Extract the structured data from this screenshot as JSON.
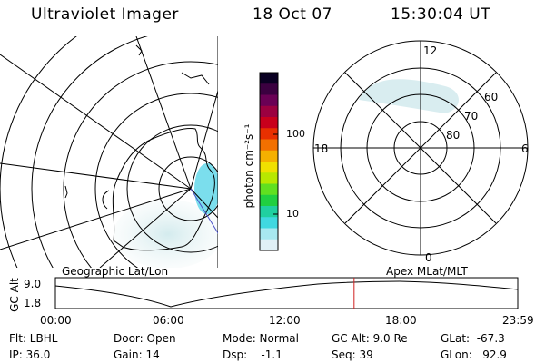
{
  "header": {
    "title": "Ultraviolet Imager",
    "date": "18 Oct 07",
    "time": "15:30:04 UT"
  },
  "colorbar": {
    "unit_label": "photon cm⁻²s⁻¹",
    "ticks": [
      "100",
      "10"
    ],
    "colors": [
      "#0a0022",
      "#3b0040",
      "#6a0055",
      "#9b0040",
      "#c8001c",
      "#e83000",
      "#f27000",
      "#f5b000",
      "#f0e000",
      "#b8e800",
      "#60e020",
      "#20d040",
      "#20d0a0",
      "#40d8e0",
      "#a8e8f0",
      "#e0f0f6"
    ]
  },
  "geo_map": {
    "caption": "Geographic Lat/Lon"
  },
  "polar": {
    "caption": "Apex MLat/MLT",
    "mlt_labels": {
      "top": "12",
      "bottom": "0",
      "left": "18",
      "right": "6"
    },
    "lat_labels": [
      "60",
      "70",
      "80"
    ]
  },
  "altitude_strip": {
    "ylabel": "GC Alt",
    "yticks": [
      "9.0",
      "1.8"
    ],
    "xticks": [
      "00:00",
      "06:00",
      "12:00",
      "18:00",
      "23:59"
    ],
    "current_time_fraction": 0.646,
    "marker_color": "#d02020"
  },
  "status": {
    "flt": "Flt: LBHL",
    "ip": "IP: 36.0",
    "door": "Door: Open",
    "gain": "Gain: 14",
    "mode": "Mode: Normal",
    "dsp": "Dsp:    -1.1",
    "gc_alt": "GC Alt: 9.0 Re",
    "seq": "Seq: 39",
    "glat": "GLat:  -67.3",
    "glon": "GLon:   92.9"
  }
}
